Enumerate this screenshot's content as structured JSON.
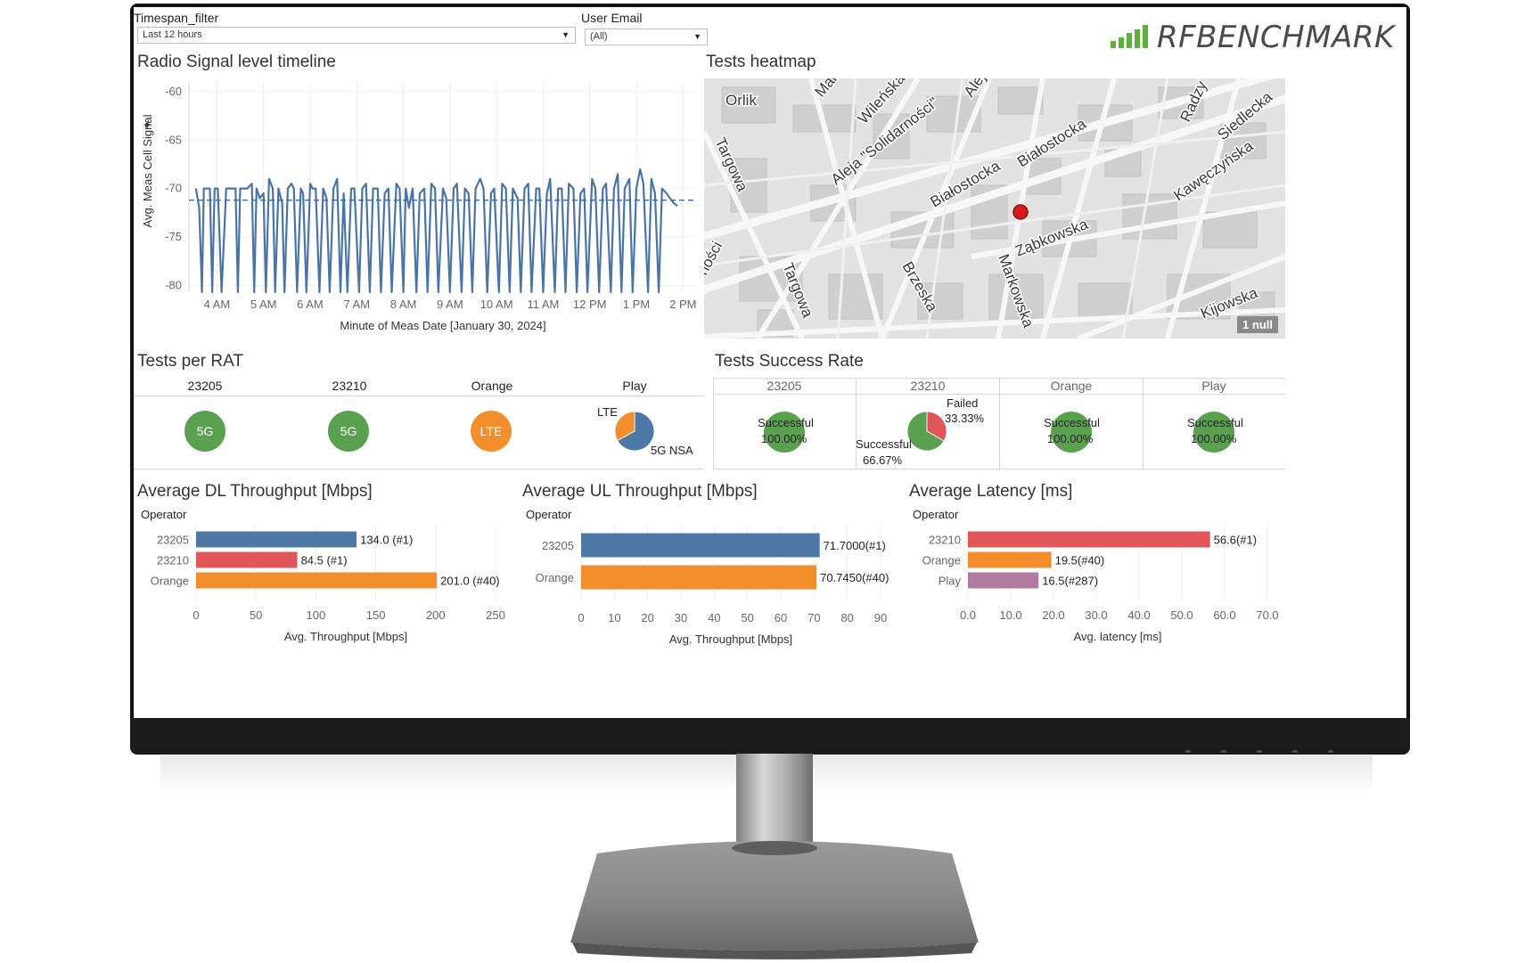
{
  "filters": {
    "timespan": {
      "label": "Timespan_filter",
      "value": "Last 12 hours"
    },
    "user_email": {
      "label": "User Email",
      "value": "(All)"
    }
  },
  "logo": {
    "text": "RFBENCHMARK",
    "color": "#5cb03c"
  },
  "signal_panel": {
    "title": "Radio Signal level timeline",
    "chart_data": {
      "type": "line",
      "title": "Radio Signal level timeline",
      "ylabel": "Avg. Meas Cell Signal",
      "xlabel": "Minute of Meas Date [January 30, 2024]",
      "x_ticks": [
        "4 AM",
        "5 AM",
        "6 AM",
        "7 AM",
        "8 AM",
        "9 AM",
        "10 AM",
        "11 AM",
        "12 PM",
        "1 PM",
        "2 PM"
      ],
      "y_ticks": [
        -60,
        -65,
        -70,
        -75,
        -80
      ],
      "ylim": [
        -80.7,
        -59
      ],
      "reference_line": -71.2,
      "color": "#4a74a8",
      "series": [
        {
          "x": [
            3.55,
            3.62,
            3.68,
            3.72,
            3.78,
            3.85,
            3.9,
            3.95,
            4.02,
            4.1,
            4.2,
            4.3,
            4.4,
            4.45,
            4.5,
            4.58,
            4.65,
            4.75,
            4.8,
            4.85,
            4.92,
            5.0,
            5.05,
            5.12,
            5.2,
            5.25,
            5.32,
            5.4,
            5.45,
            5.52,
            5.6,
            5.65,
            5.72,
            5.8,
            5.85,
            5.92,
            6.0,
            6.05,
            6.12,
            6.2,
            6.28,
            6.35,
            6.42,
            6.5,
            6.58,
            6.65,
            6.72,
            6.8,
            6.88,
            6.95,
            7.05,
            7.12,
            7.2,
            7.28,
            7.35,
            7.45,
            7.52,
            7.6,
            7.68,
            7.75,
            7.85,
            7.92,
            8.0,
            8.05,
            8.12,
            8.2,
            8.28,
            8.35,
            8.45,
            8.52,
            8.6,
            8.68,
            8.75,
            8.85,
            8.92,
            9.0,
            9.08,
            9.15,
            9.25,
            9.32,
            9.4,
            9.48,
            9.55,
            9.65,
            9.72,
            9.8,
            9.88,
            9.95,
            10.05,
            10.12,
            10.2,
            10.28,
            10.35,
            10.45,
            10.52,
            10.6,
            10.68,
            10.75,
            10.85,
            10.92,
            11.0,
            11.08,
            11.15,
            11.25,
            11.32,
            11.4,
            11.48,
            11.55,
            11.65,
            11.72,
            11.8,
            11.88,
            11.95,
            12.05,
            12.12,
            12.2,
            12.28,
            12.35,
            12.45,
            12.52,
            12.6,
            12.68,
            12.75,
            12.85,
            12.92,
            13.0,
            13.08,
            13.15,
            13.25,
            13.32,
            13.4,
            13.48,
            13.55,
            13.65,
            13.72,
            13.8,
            13.88
          ],
          "y": [
            -70.0,
            -72.0,
            -80.7,
            -70.0,
            -70.0,
            -70.0,
            -80.7,
            -70.0,
            -70.0,
            -80.7,
            -70.0,
            -70.0,
            -70.0,
            -80.7,
            -70.0,
            -70.0,
            -70.0,
            -69.5,
            -80.7,
            -70.0,
            -71.0,
            -70.5,
            -80.7,
            -69.0,
            -70.0,
            -80.7,
            -70.0,
            -71.5,
            -80.7,
            -70.0,
            -69.5,
            -70.0,
            -80.7,
            -70.0,
            -70.5,
            -80.7,
            -69.5,
            -70.0,
            -70.0,
            -80.7,
            -70.0,
            -71.0,
            -80.7,
            -70.0,
            -69.0,
            -80.7,
            -70.5,
            -80.7,
            -70.0,
            -70.0,
            -80.7,
            -70.0,
            -69.5,
            -80.7,
            -70.0,
            -70.0,
            -80.7,
            -70.5,
            -70.0,
            -80.7,
            -69.5,
            -70.0,
            -80.7,
            -70.0,
            -72.0,
            -70.0,
            -80.7,
            -70.5,
            -70.0,
            -80.7,
            -69.5,
            -70.0,
            -80.7,
            -70.0,
            -71.0,
            -80.7,
            -70.0,
            -69.5,
            -80.7,
            -70.0,
            -70.5,
            -80.7,
            -70.0,
            -69.0,
            -70.0,
            -80.7,
            -70.5,
            -70.0,
            -80.7,
            -69.5,
            -70.0,
            -80.7,
            -70.0,
            -71.0,
            -80.7,
            -70.0,
            -69.5,
            -80.7,
            -70.0,
            -70.0,
            -80.7,
            -70.5,
            -69.0,
            -80.7,
            -70.0,
            -70.0,
            -80.7,
            -69.5,
            -70.0,
            -80.7,
            -70.5,
            -70.0,
            -80.7,
            -69.0,
            -70.0,
            -80.7,
            -70.0,
            -69.5,
            -80.7,
            -70.0,
            -68.5,
            -80.7,
            -70.0,
            -69.0,
            -80.7,
            -70.0,
            -68.0,
            -69.5,
            -80.7,
            -69.0,
            -70.5,
            -80.7,
            -70.0,
            -70.5,
            -71.0,
            -71.5,
            -71.8
          ]
        }
      ]
    }
  },
  "heatmap_panel": {
    "title": "Tests heatmap",
    "null_badge": "1 null",
    "street_labels": [
      "Orlik",
      "Targowa",
      "Aleja \"Solidarności\"",
      "Wileńska",
      "Białostocka",
      "Białostocka",
      "Ząbkowska",
      "Brzeska",
      "Markowska",
      "Kijowska",
      "Kawęczyńska",
      "Siedlecka",
      "Radzy",
      "Targowa",
      "ności",
      "Małe",
      "Aleja"
    ],
    "marker_color": "#d7191c"
  },
  "rat_panel": {
    "title": "Tests per RAT",
    "columns": [
      {
        "header": "23205",
        "label": "5G",
        "color": "#59a14f"
      },
      {
        "header": "23210",
        "label": "5G",
        "color": "#59a14f"
      },
      {
        "header": "Orange",
        "label": "LTE",
        "color": "#f28e2b"
      },
      {
        "header": "Play",
        "pie_labels": [
          "LTE",
          "5G NSA"
        ],
        "pie_values": [
          0.33,
          0.67
        ],
        "pie_colors": [
          "#f28e2b",
          "#4e79a7"
        ]
      }
    ]
  },
  "success_panel": {
    "title": "Tests Success Rate",
    "columns": [
      {
        "header": "23205",
        "label": "Successful",
        "value": "100.00%"
      },
      {
        "header": "23210",
        "failed_label": "Failed",
        "failed_value": "33.33%",
        "success_label": "Successful",
        "success_value": "66.67%"
      },
      {
        "header": "Orange",
        "label": "Successful",
        "value": "100.00%"
      },
      {
        "header": "Play",
        "label": "Successful",
        "value": "100.00%"
      }
    ],
    "colors": {
      "success": "#59a14f",
      "failed": "#e15759"
    }
  },
  "dl_panel": {
    "title": "Average DL Throughput [Mbps]",
    "chart_data": {
      "type": "bar",
      "orientation": "horizontal",
      "legend_title": "Operator",
      "categories": [
        "23205",
        "23210",
        "Orange"
      ],
      "values": [
        134.0,
        84.5,
        201.0
      ],
      "labels": [
        "134.0 (#1)",
        "84.5 (#1)",
        "201.0 (#40)"
      ],
      "colors": [
        "#4e79a7",
        "#e15759",
        "#f28e2b"
      ],
      "xlabel": "Avg. Throughput [Mbps]",
      "xlim": [
        0,
        250
      ],
      "x_ticks": [
        0,
        50,
        100,
        150,
        200,
        250
      ]
    }
  },
  "ul_panel": {
    "title": "Average UL Throughput [Mbps]",
    "chart_data": {
      "type": "bar",
      "orientation": "horizontal",
      "legend_title": "Operator",
      "categories": [
        "23205",
        "Orange"
      ],
      "values": [
        71.7,
        70.745
      ],
      "labels": [
        "71.7000(#1)",
        "70.7450(#40)"
      ],
      "colors": [
        "#4e79a7",
        "#f28e2b"
      ],
      "xlabel": "Avg. Throughput [Mbps]",
      "xlim": [
        0,
        90
      ],
      "x_ticks": [
        0,
        10,
        20,
        30,
        40,
        50,
        60,
        70,
        80,
        90
      ]
    }
  },
  "latency_panel": {
    "title": "Average Latency [ms]",
    "chart_data": {
      "type": "bar",
      "orientation": "horizontal",
      "legend_title": "Operator",
      "categories": [
        "23210",
        "Orange",
        "Play"
      ],
      "values": [
        56.6,
        19.5,
        16.5
      ],
      "labels": [
        "56.6(#1)",
        "19.5(#40)",
        "16.5(#287)"
      ],
      "colors": [
        "#e15759",
        "#f28e2b",
        "#b07aa1"
      ],
      "xlabel": "Avg. latency [ms]",
      "xlim": [
        0,
        70
      ],
      "x_ticks": [
        "0.0",
        "10.0",
        "20.0",
        "30.0",
        "40.0",
        "50.0",
        "60.0",
        "70.0"
      ]
    }
  }
}
